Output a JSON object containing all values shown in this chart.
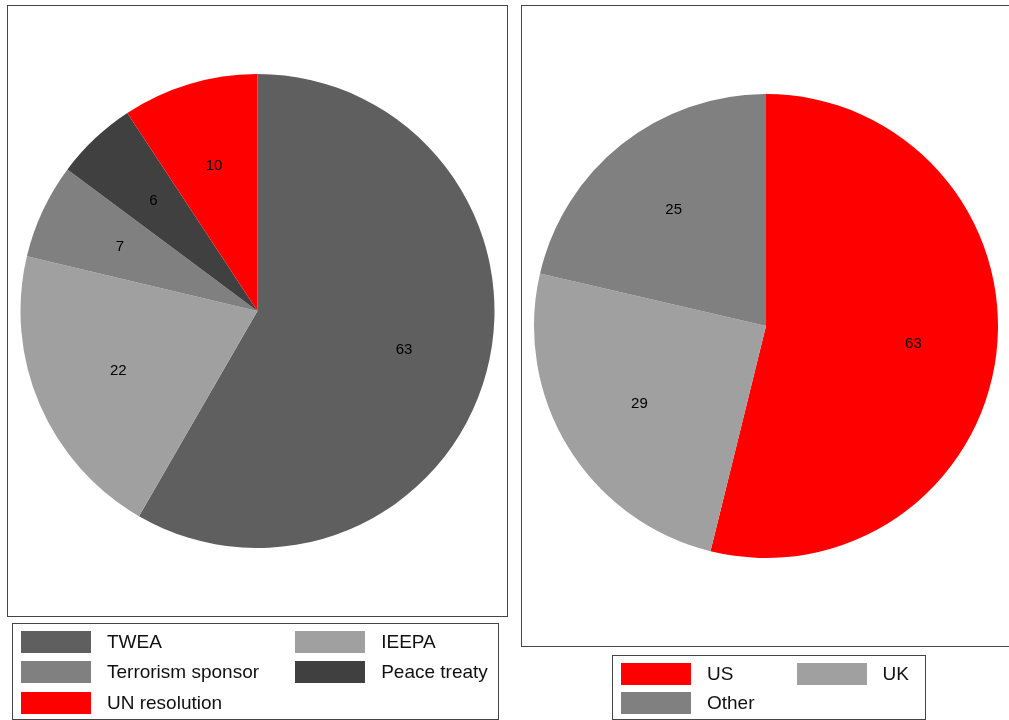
{
  "chart_data": [
    {
      "type": "pie",
      "categories": [
        "TWEA",
        "IEEPA",
        "Terrorism sponsor",
        "Peace treaty",
        "UN resolution"
      ],
      "values": [
        63,
        22,
        7,
        6,
        10
      ],
      "colors": [
        "#5f5f5f",
        "#a0a0a0",
        "#808080",
        "#404040",
        "#ff0000"
      ],
      "data_labels": true,
      "legend": "bottom"
    },
    {
      "type": "pie",
      "categories": [
        "US",
        "UK",
        "Other"
      ],
      "values": [
        63,
        29,
        25
      ],
      "colors": [
        "#ff0000",
        "#a0a0a0",
        "#808080"
      ],
      "data_labels": true,
      "legend": "bottom"
    }
  ]
}
